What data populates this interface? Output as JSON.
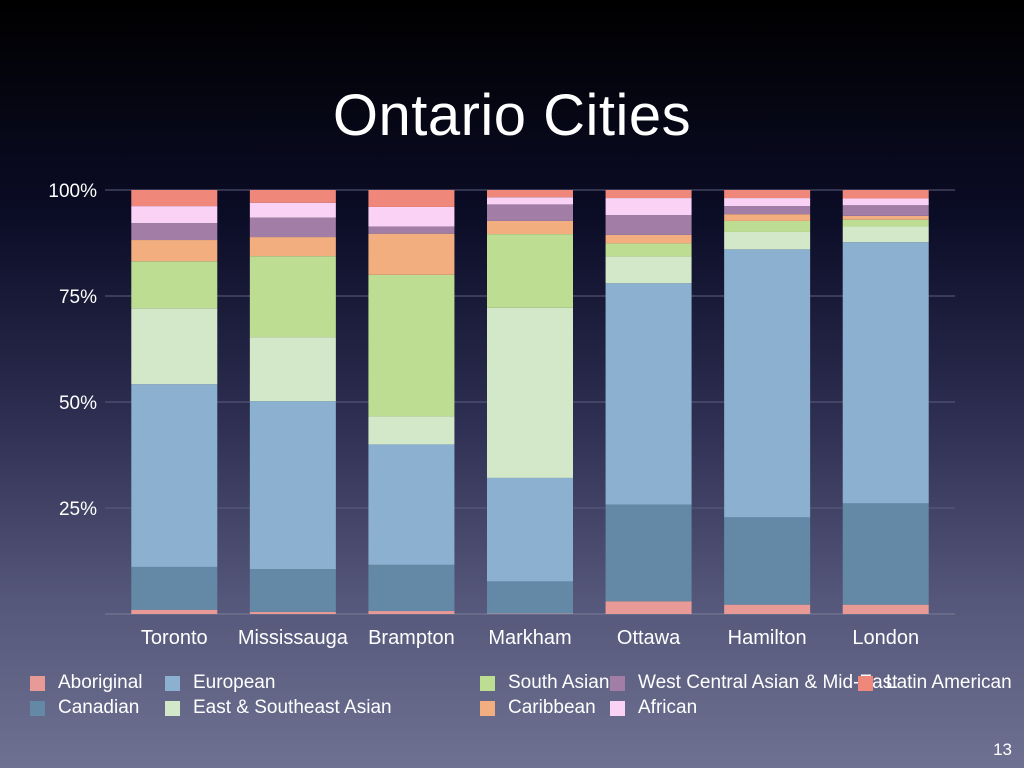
{
  "slide": {
    "title": "Ontario Cities",
    "page_number": "13"
  },
  "chart_data": {
    "type": "bar",
    "stacked": true,
    "categories": [
      "Toronto",
      "Mississauga",
      "Brampton",
      "Markham",
      "Ottawa",
      "Hamilton",
      "London"
    ],
    "yticks": [
      "100%",
      "75%",
      "50%",
      "25%"
    ],
    "ylim": [
      0,
      100
    ],
    "grid": true,
    "legend_placement": "bottom",
    "series": [
      {
        "name": "Aboriginal",
        "color": "#e89a96",
        "values": [
          1.0,
          0.5,
          0.7,
          0.1,
          3.0,
          2.2,
          2.2
        ]
      },
      {
        "name": "Canadian",
        "color": "#6489a7",
        "values": [
          10.1,
          10.1,
          10.9,
          7.6,
          22.8,
          20.6,
          23.9
        ]
      },
      {
        "name": "European",
        "color": "#8cb0cf",
        "values": [
          43.1,
          39.6,
          28.4,
          24.4,
          52.2,
          63.2,
          61.6
        ]
      },
      {
        "name": "East & Southeast Asian",
        "color": "#d3e8c8",
        "values": [
          17.9,
          15.1,
          6.6,
          40.1,
          6.3,
          4.1,
          3.7
        ]
      },
      {
        "name": "South Asian",
        "color": "#bcdd92",
        "values": [
          11.1,
          19.1,
          33.4,
          17.4,
          3.1,
          2.6,
          1.6
        ]
      },
      {
        "name": "Caribbean",
        "color": "#f2ae7f",
        "values": [
          5.0,
          4.5,
          9.7,
          3.1,
          2.0,
          1.6,
          0.9
        ]
      },
      {
        "name": "West Central Asian & Mid-East",
        "color": "#a27ea6",
        "values": [
          4.0,
          4.6,
          1.7,
          3.9,
          4.7,
          1.9,
          2.5
        ]
      },
      {
        "name": "African",
        "color": "#f9d2f6",
        "values": [
          4.0,
          3.5,
          4.6,
          1.7,
          4.0,
          1.9,
          1.6
        ]
      },
      {
        "name": "Latin American",
        "color": "#ef877b",
        "values": [
          3.8,
          3.0,
          4.0,
          1.7,
          1.9,
          1.9,
          2.0
        ]
      }
    ]
  }
}
